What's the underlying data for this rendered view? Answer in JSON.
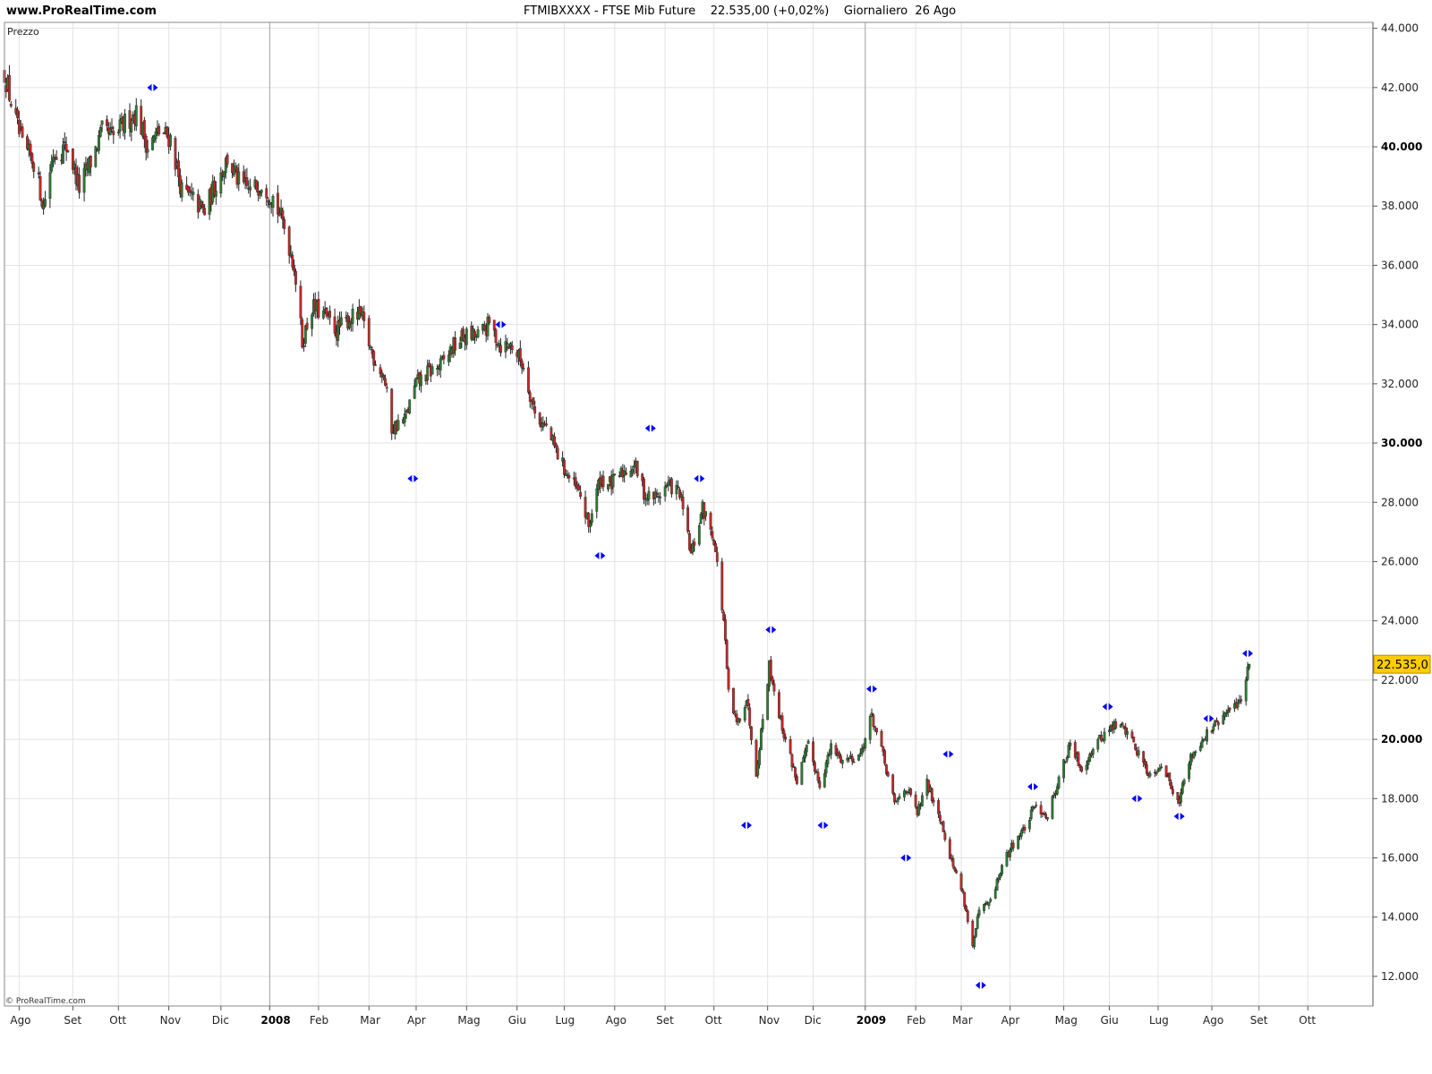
{
  "header": {
    "site": "www.ProRealTime.com",
    "symbol": "FTMIBXXXX",
    "instrument": "FTSE Mib Future",
    "price": "22.535,00",
    "change": "(+0,02%)",
    "period": "Giornaliero",
    "date": "26 Ago"
  },
  "panel_label": "Prezzo",
  "copyright": "© ProRealTime.com",
  "colors": {
    "up": "#2e7d32",
    "down": "#c62828",
    "marker": "#0000ff",
    "grid": "#e3e3e3",
    "separator": "#a6a6a6",
    "price_tag": "#ffcc00"
  },
  "chart_data": {
    "type": "candlestick",
    "title": "FTMIBXXXX - FTSE Mib Future 22.535,00 (+0,02%) Giornaliero 26 Ago",
    "ylim": [
      11000,
      44200
    ],
    "y_ticks": [
      12000,
      14000,
      16000,
      18000,
      20000,
      22000,
      24000,
      26000,
      28000,
      30000,
      32000,
      34000,
      36000,
      38000,
      40000,
      42000,
      44000
    ],
    "y_tick_labels": [
      "12.000",
      "14.000",
      "16.000",
      "18.000",
      "20.000",
      "22.000",
      "24.000",
      "26.000",
      "28.000",
      "30.000",
      "32.000",
      "34.000",
      "36.000",
      "38.000",
      "40.000",
      "42.000",
      "44.000"
    ],
    "y_bold_ticks": [
      20000,
      30000,
      40000
    ],
    "x_range": [
      "2007-07-23",
      "2009-11-10"
    ],
    "x_ticks": [
      {
        "date": "2007-08-01",
        "label": "Ago"
      },
      {
        "date": "2007-09-03",
        "label": "Set"
      },
      {
        "date": "2007-10-01",
        "label": "Ott"
      },
      {
        "date": "2007-11-01",
        "label": "Nov"
      },
      {
        "date": "2007-12-03",
        "label": "Dic"
      },
      {
        "date": "2008-01-02",
        "label": "2008",
        "bold": true
      },
      {
        "date": "2008-02-01",
        "label": "Feb"
      },
      {
        "date": "2008-03-03",
        "label": "Mar"
      },
      {
        "date": "2008-04-01",
        "label": "Apr"
      },
      {
        "date": "2008-05-02",
        "label": "Mag"
      },
      {
        "date": "2008-06-02",
        "label": "Giu"
      },
      {
        "date": "2008-07-01",
        "label": "Lug"
      },
      {
        "date": "2008-08-01",
        "label": "Ago"
      },
      {
        "date": "2008-09-01",
        "label": "Set"
      },
      {
        "date": "2008-10-01",
        "label": "Ott"
      },
      {
        "date": "2008-11-03",
        "label": "Nov"
      },
      {
        "date": "2008-12-01",
        "label": "Dic"
      },
      {
        "date": "2009-01-02",
        "label": "2009",
        "bold": true
      },
      {
        "date": "2009-02-02",
        "label": "Feb"
      },
      {
        "date": "2009-03-02",
        "label": "Mar"
      },
      {
        "date": "2009-04-01",
        "label": "Apr"
      },
      {
        "date": "2009-05-04",
        "label": "Mag"
      },
      {
        "date": "2009-06-01",
        "label": "Giu"
      },
      {
        "date": "2009-07-01",
        "label": "Lug"
      },
      {
        "date": "2009-08-03",
        "label": "Ago"
      },
      {
        "date": "2009-09-01",
        "label": "Set"
      },
      {
        "date": "2009-10-01",
        "label": "Ott"
      }
    ],
    "year_separators": [
      "2008-01-02",
      "2009-01-02"
    ],
    "last_price": 22535,
    "last_price_label": "22.535,0",
    "close_path": [
      [
        "2007-07-23",
        42500
      ],
      [
        "2007-07-27",
        41500
      ],
      [
        "2007-08-03",
        40000
      ],
      [
        "2007-08-10",
        39500
      ],
      [
        "2007-08-16",
        38000
      ],
      [
        "2007-08-22",
        39800
      ],
      [
        "2007-08-31",
        40000
      ],
      [
        "2007-09-07",
        38600
      ],
      [
        "2007-09-14",
        39500
      ],
      [
        "2007-09-21",
        40500
      ],
      [
        "2007-09-28",
        40300
      ],
      [
        "2007-10-05",
        40800
      ],
      [
        "2007-10-12",
        41200
      ],
      [
        "2007-10-19",
        40000
      ],
      [
        "2007-10-26",
        40500
      ],
      [
        "2007-11-02",
        40300
      ],
      [
        "2007-11-09",
        38500
      ],
      [
        "2007-11-16",
        38200
      ],
      [
        "2007-11-23",
        37800
      ],
      [
        "2007-11-30",
        38800
      ],
      [
        "2007-12-07",
        39600
      ],
      [
        "2007-12-14",
        38800
      ],
      [
        "2007-12-21",
        38500
      ],
      [
        "2007-12-28",
        38800
      ],
      [
        "2008-01-04",
        38300
      ],
      [
        "2008-01-11",
        37300
      ],
      [
        "2008-01-17",
        36000
      ],
      [
        "2008-01-22",
        33400
      ],
      [
        "2008-01-28",
        34600
      ],
      [
        "2008-02-05",
        34300
      ],
      [
        "2008-02-12",
        33800
      ],
      [
        "2008-02-20",
        34200
      ],
      [
        "2008-02-27",
        34300
      ],
      [
        "2008-03-05",
        33000
      ],
      [
        "2008-03-12",
        32300
      ],
      [
        "2008-03-17",
        30500
      ],
      [
        "2008-03-25",
        30800
      ],
      [
        "2008-04-01",
        32000
      ],
      [
        "2008-04-09",
        32400
      ],
      [
        "2008-04-16",
        32600
      ],
      [
        "2008-04-23",
        33200
      ],
      [
        "2008-04-30",
        33600
      ],
      [
        "2008-05-09",
        33600
      ],
      [
        "2008-05-16",
        34000
      ],
      [
        "2008-05-23",
        33300
      ],
      [
        "2008-05-30",
        33300
      ],
      [
        "2008-06-06",
        32600
      ],
      [
        "2008-06-13",
        31000
      ],
      [
        "2008-06-20",
        30500
      ],
      [
        "2008-06-27",
        29600
      ],
      [
        "2008-07-04",
        28800
      ],
      [
        "2008-07-11",
        28200
      ],
      [
        "2008-07-16",
        27200
      ],
      [
        "2008-07-23",
        28800
      ],
      [
        "2008-07-30",
        28600
      ],
      [
        "2008-08-06",
        29000
      ],
      [
        "2008-08-13",
        29300
      ],
      [
        "2008-08-20",
        28200
      ],
      [
        "2008-08-27",
        28200
      ],
      [
        "2008-09-03",
        28600
      ],
      [
        "2008-09-10",
        28300
      ],
      [
        "2008-09-17",
        26200
      ],
      [
        "2008-09-24",
        27800
      ],
      [
        "2008-10-01",
        26800
      ],
      [
        "2008-10-07",
        24000
      ],
      [
        "2008-10-10",
        21500
      ],
      [
        "2008-10-15",
        20500
      ],
      [
        "2008-10-21",
        21400
      ],
      [
        "2008-10-27",
        18900
      ],
      [
        "2008-11-04",
        22500
      ],
      [
        "2008-11-11",
        20600
      ],
      [
        "2008-11-18",
        19200
      ],
      [
        "2008-11-21",
        18600
      ],
      [
        "2008-11-28",
        19800
      ],
      [
        "2008-12-05",
        18500
      ],
      [
        "2008-12-12",
        19700
      ],
      [
        "2008-12-19",
        19300
      ],
      [
        "2008-12-30",
        19500
      ],
      [
        "2009-01-06",
        20800
      ],
      [
        "2009-01-13",
        19400
      ],
      [
        "2009-01-20",
        17800
      ],
      [
        "2009-01-27",
        18400
      ],
      [
        "2009-02-03",
        17500
      ],
      [
        "2009-02-09",
        18500
      ],
      [
        "2009-02-17",
        17400
      ],
      [
        "2009-02-24",
        15900
      ],
      [
        "2009-03-03",
        14800
      ],
      [
        "2009-03-09",
        13000
      ],
      [
        "2009-03-13",
        14200
      ],
      [
        "2009-03-20",
        14500
      ],
      [
        "2009-03-27",
        15700
      ],
      [
        "2009-04-03",
        16500
      ],
      [
        "2009-04-10",
        17000
      ],
      [
        "2009-04-17",
        17800
      ],
      [
        "2009-04-24",
        17400
      ],
      [
        "2009-05-01",
        18700
      ],
      [
        "2009-05-08",
        19800
      ],
      [
        "2009-05-15",
        19000
      ],
      [
        "2009-05-22",
        19700
      ],
      [
        "2009-05-29",
        20200
      ],
      [
        "2009-06-05",
        20500
      ],
      [
        "2009-06-12",
        20300
      ],
      [
        "2009-06-19",
        19500
      ],
      [
        "2009-06-26",
        18800
      ],
      [
        "2009-07-03",
        19200
      ],
      [
        "2009-07-10",
        18300
      ],
      [
        "2009-07-14",
        18000
      ],
      [
        "2009-07-21",
        19400
      ],
      [
        "2009-07-28",
        20000
      ],
      [
        "2009-08-04",
        20400
      ],
      [
        "2009-08-11",
        20800
      ],
      [
        "2009-08-18",
        21200
      ],
      [
        "2009-08-21",
        21400
      ],
      [
        "2009-08-26",
        22535
      ]
    ],
    "markers": [
      {
        "date": "2007-10-22",
        "value": 42000
      },
      {
        "date": "2008-03-30",
        "value": 28800
      },
      {
        "date": "2008-05-23",
        "value": 34000
      },
      {
        "date": "2008-07-23",
        "value": 26200
      },
      {
        "date": "2008-08-23",
        "value": 30500
      },
      {
        "date": "2008-09-22",
        "value": 28800
      },
      {
        "date": "2008-10-21",
        "value": 17100
      },
      {
        "date": "2008-11-05",
        "value": 23700
      },
      {
        "date": "2008-12-07",
        "value": 17100
      },
      {
        "date": "2009-01-06",
        "value": 21700
      },
      {
        "date": "2009-01-27",
        "value": 16000
      },
      {
        "date": "2009-02-22",
        "value": 19500
      },
      {
        "date": "2009-03-14",
        "value": 11700
      },
      {
        "date": "2009-04-15",
        "value": 18400
      },
      {
        "date": "2009-05-31",
        "value": 21100
      },
      {
        "date": "2009-06-18",
        "value": 18000
      },
      {
        "date": "2009-07-14",
        "value": 17400
      },
      {
        "date": "2009-08-01",
        "value": 20700
      },
      {
        "date": "2009-08-25",
        "value": 22900
      }
    ]
  }
}
